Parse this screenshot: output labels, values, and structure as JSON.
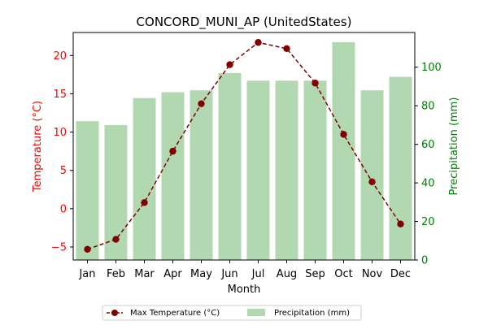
{
  "chart_data": {
    "type": "bar+line",
    "title": "CONCORD_MUNI_AP (UnitedStates)",
    "xlabel": "Month",
    "categories": [
      "Jan",
      "Feb",
      "Mar",
      "Apr",
      "May",
      "Jun",
      "Jul",
      "Aug",
      "Sep",
      "Oct",
      "Nov",
      "Dec"
    ],
    "left_axis": {
      "label": "Temperature (°C)",
      "color": "#ff0000",
      "ylim": [
        -6.7,
        23.0
      ],
      "ticks": [
        -5,
        0,
        5,
        10,
        15,
        20
      ],
      "tick_labels": [
        "−5",
        "0",
        "5",
        "10",
        "15",
        "20"
      ]
    },
    "right_axis": {
      "label": "Precipitation (mm)",
      "color": "#008000",
      "ylim": [
        0,
        118
      ],
      "ticks": [
        0,
        20,
        40,
        60,
        80,
        100
      ],
      "tick_labels": [
        "0",
        "20",
        "40",
        "60",
        "80",
        "100"
      ]
    },
    "series": [
      {
        "name": "Max Temperature (°C)",
        "type": "line",
        "axis": "left",
        "color": "#800000",
        "line_style": "dashed",
        "marker": "circle",
        "values": [
          -5.3,
          -4.0,
          0.8,
          7.5,
          13.7,
          18.8,
          21.7,
          20.9,
          16.4,
          9.7,
          3.5,
          -2.0
        ]
      },
      {
        "name": "Precipitation (mm)",
        "type": "bar",
        "axis": "right",
        "color": "#b2d8b2",
        "values": [
          72,
          70,
          84,
          87,
          88,
          97,
          93,
          93,
          93,
          113,
          88,
          95
        ]
      }
    ],
    "legend_position": "bottom-center",
    "grid": false
  }
}
